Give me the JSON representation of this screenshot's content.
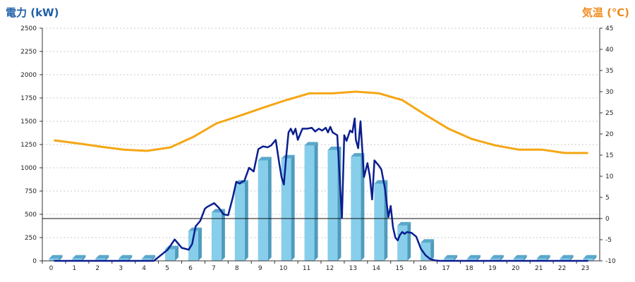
{
  "chart_data": {
    "type": "bar",
    "left_axis_title": "電力 (kW)",
    "right_axis_title": "気温 (℃)",
    "categories": [
      "0",
      "1",
      "2",
      "3",
      "4",
      "5",
      "6",
      "7",
      "8",
      "9",
      "10",
      "11",
      "12",
      "13",
      "14",
      "15",
      "16",
      "17",
      "18",
      "19",
      "20",
      "21",
      "22",
      "23"
    ],
    "ylim_left": [
      0,
      2500
    ],
    "ylim_right": [
      -10,
      45
    ],
    "yticks_left": [
      0,
      250,
      500,
      750,
      1000,
      1250,
      1500,
      1750,
      2000,
      2250,
      2500
    ],
    "yticks_right": [
      -10,
      -5,
      0,
      5,
      10,
      15,
      20,
      25,
      30,
      35,
      40,
      45
    ],
    "grid": true,
    "bar_series": {
      "axis": "left",
      "color": "#87ceeb",
      "values": [
        25,
        25,
        25,
        25,
        25,
        125,
        320,
        520,
        830,
        1080,
        1100,
        1240,
        1190,
        1120,
        830,
        380,
        195,
        25,
        25,
        25,
        25,
        25,
        25,
        25
      ]
    },
    "power_line": {
      "axis": "left",
      "color": "#0a1d8f",
      "x": [
        0,
        4.3,
        4.6,
        4.9,
        5.2,
        5.5,
        5.8,
        5.95,
        6.1,
        6.3,
        6.5,
        6.6,
        6.9,
        7.1,
        7.3,
        7.5,
        7.7,
        7.85,
        8.0,
        8.1,
        8.2,
        8.4,
        8.6,
        8.8,
        9.0,
        9.2,
        9.35,
        9.55,
        9.7,
        9.8,
        9.9,
        10.0,
        10.1,
        10.2,
        10.3,
        10.4,
        10.5,
        10.7,
        10.9,
        11.1,
        11.25,
        11.4,
        11.55,
        11.7,
        11.8,
        11.9,
        12.0,
        12.2,
        12.4,
        12.5,
        12.6,
        12.75,
        12.85,
        12.95,
        13.0,
        13.1,
        13.2,
        13.35,
        13.5,
        13.6,
        13.7,
        13.8,
        13.9,
        14.0,
        14.1,
        14.25,
        14.4,
        14.5,
        14.6,
        14.7,
        14.8,
        14.9,
        15.0,
        15.1,
        15.2,
        15.4,
        15.6,
        15.8,
        16.0,
        16.2,
        16.4,
        16.6,
        16.8,
        17.0,
        23.0
      ],
      "y": [
        0,
        0,
        60,
        120,
        230,
        140,
        120,
        180,
        370,
        430,
        560,
        580,
        620,
        570,
        500,
        490,
        680,
        850,
        830,
        850,
        860,
        1000,
        960,
        1200,
        1230,
        1220,
        1240,
        1300,
        1050,
        900,
        820,
        1120,
        1380,
        1420,
        1360,
        1420,
        1300,
        1420,
        1420,
        1430,
        1390,
        1420,
        1400,
        1430,
        1380,
        1440,
        1380,
        1350,
        460,
        1350,
        1290,
        1400,
        1380,
        1530,
        1300,
        1210,
        1500,
        900,
        1050,
        910,
        660,
        1080,
        1050,
        1020,
        980,
        780,
        470,
        590,
        360,
        250,
        220,
        280,
        310,
        290,
        310,
        300,
        260,
        130,
        60,
        20,
        5,
        0,
        0,
        0,
        0
      ]
    },
    "temperature_line": {
      "axis": "right",
      "color": "#f5a614",
      "x": [
        0,
        1,
        2,
        3,
        4,
        5,
        6,
        7,
        8,
        9,
        10,
        11,
        12,
        13,
        14,
        15,
        16,
        17,
        18,
        19,
        20,
        21,
        22,
        23
      ],
      "y": [
        18.5,
        17.8,
        17.0,
        16.3,
        16.0,
        16.8,
        19.3,
        22.5,
        24.3,
        26.2,
        28.0,
        29.6,
        29.6,
        30.0,
        29.6,
        28.0,
        24.5,
        21.2,
        18.8,
        17.3,
        16.3,
        16.3,
        15.5,
        15.5
      ]
    }
  }
}
